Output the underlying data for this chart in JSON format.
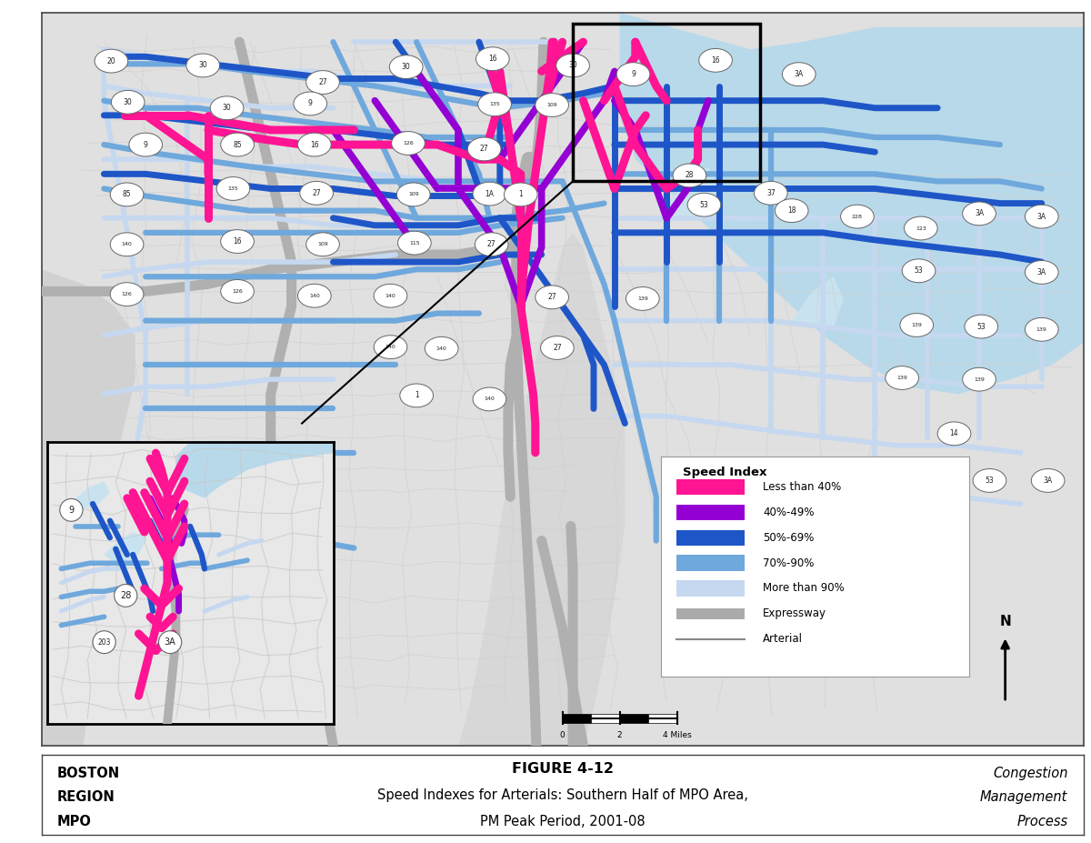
{
  "title_figure": "FIGURE 4-12",
  "title_sub1": "Speed Indexes for Arterials: Southern Half of MPO Area,",
  "title_sub2": "PM Peak Period, 2001-08",
  "left_text": [
    "BOSTON",
    "REGION",
    "MPO"
  ],
  "right_text": [
    "Congestion",
    "Management",
    "Process"
  ],
  "legend_title": "Speed Index",
  "legend_items": [
    {
      "label": "Less than 40%",
      "color": "#FF1493"
    },
    {
      "label": "40%-49%",
      "color": "#9400D3"
    },
    {
      "label": "50%-69%",
      "color": "#1E56C8"
    },
    {
      "label": "70%-90%",
      "color": "#6FA8DC"
    },
    {
      "label": "More than 90%",
      "color": "#C5D8F0"
    },
    {
      "label": "Expressway",
      "color": "#AAAAAA"
    },
    {
      "label": "Arterial",
      "color": "#999999"
    }
  ],
  "map_bg": "#FFFFFF",
  "land_color": "#E0E0E0",
  "water_color_ocean": "#B8D9EA",
  "water_color_harbor": "#C8E3EF",
  "gray_land": "#C8C8C8",
  "fig_width": 12.0,
  "fig_height": 9.27
}
